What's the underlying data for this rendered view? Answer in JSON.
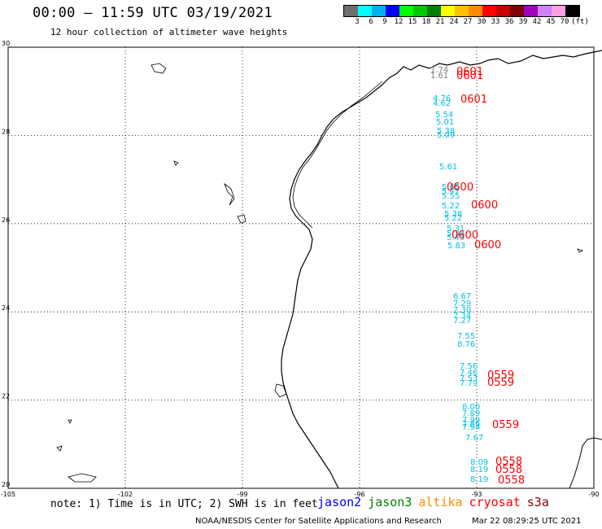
{
  "header": {
    "title": "00:00 – 11:59 UTC 03/19/2021",
    "subtitle": "12 hour collection of altimeter wave heights"
  },
  "colorbar": {
    "colors": [
      "#6e6e6e",
      "#00ffff",
      "#00b0f0",
      "#0000ff",
      "#00ff00",
      "#00c800",
      "#008000",
      "#ffff00",
      "#ffc000",
      "#ff8c00",
      "#ff0000",
      "#c80000",
      "#800000",
      "#a000c0",
      "#d080ff",
      "#ffa0e0",
      "#000000"
    ],
    "labels": [
      "3",
      "6",
      "9",
      "12",
      "15",
      "18",
      "21",
      "24",
      "27",
      "30",
      "33",
      "36",
      "39",
      "42",
      "45",
      "70",
      "(ft)"
    ]
  },
  "map": {
    "lon_labels": [
      "-105",
      "-102",
      "-99",
      "-96",
      "-93",
      "-90"
    ],
    "lat_labels": [
      "30",
      "28",
      "26",
      "24",
      "22",
      "20"
    ],
    "lon_values": [
      -105,
      -102,
      -99,
      -96,
      -93,
      -90
    ],
    "lat_values": [
      30,
      28,
      26,
      24,
      22,
      20
    ]
  },
  "observations": {
    "gray": [
      "1.74",
      "1.61"
    ],
    "cyan": [
      "4.76",
      "4.62",
      "5.54",
      "5.01",
      "5.38",
      "5.09",
      "5.61",
      "5.65",
      "5.47",
      "5.55",
      "5.22",
      "5.38",
      "5.22",
      "5.31",
      "5.33",
      "5.43",
      "5.83",
      "6.67",
      "7.29",
      "7.30",
      "7.34",
      "7.27",
      "7.55",
      "8.76",
      "7.56",
      "7.46",
      "7.53",
      "7.79",
      "8.00",
      "7.89",
      "7.99",
      "7.86",
      "7.94",
      "7.67",
      "8.09",
      "8.19",
      "8.19"
    ],
    "times": [
      "0601",
      "0601",
      "0601",
      "0600",
      "0600",
      "0600",
      "0600",
      "0559",
      "0559",
      "0559",
      "0558",
      "0558",
      "0558"
    ]
  },
  "footer": {
    "note": "note: 1) Time is in UTC; 2) SWH is in feet",
    "satellites": [
      {
        "name": "jason2",
        "color": "#0000ff"
      },
      {
        "name": "jason3",
        "color": "#008000"
      },
      {
        "name": "altika",
        "color": "#ff8c00"
      },
      {
        "name": "cryosat",
        "color": "#ff0000"
      },
      {
        "name": "s3a",
        "color": "#800000"
      }
    ],
    "credit": "NOAA/NESDIS Center for Satellite Applications and Research",
    "timestamp": "Mar 22 08:29:25 UTC 2021"
  },
  "colors": {
    "cyan_text": "#00c0e8",
    "gray_text": "#808080",
    "red_text": "#ff0000"
  }
}
